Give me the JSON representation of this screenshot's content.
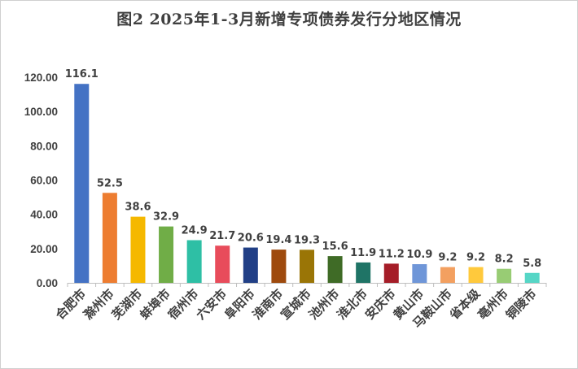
{
  "chart_data": {
    "type": "bar",
    "title": "图2  2025年1-3月新增专项债券发行分地区情况",
    "xlabel": "",
    "ylabel": "",
    "ylim": [
      0,
      120
    ],
    "yticks": [
      "0.00",
      "20.00",
      "40.00",
      "60.00",
      "80.00",
      "100.00",
      "120.00"
    ],
    "grid": false,
    "legend": "none",
    "categories": [
      "合肥市",
      "滁州市",
      "芜湖市",
      "蚌埠市",
      "宿州市",
      "六安市",
      "阜阳市",
      "淮南市",
      "宣城市",
      "池州市",
      "淮北市",
      "安庆市",
      "黄山市",
      "马鞍山市",
      "省本级",
      "亳州市",
      "铜陵市"
    ],
    "values": [
      116.1,
      52.5,
      38.6,
      32.9,
      24.9,
      21.7,
      20.6,
      19.4,
      19.3,
      15.6,
      11.9,
      11.2,
      10.9,
      9.2,
      9.2,
      8.2,
      5.8
    ],
    "colors": [
      "#4472c4",
      "#ed7d31",
      "#f5b800",
      "#70ad47",
      "#2ebfa5",
      "#e84c5b",
      "#213f86",
      "#9e4a0d",
      "#9a7506",
      "#3f6b26",
      "#1f7466",
      "#a51d28",
      "#6f96d8",
      "#f3a060",
      "#ffc93c",
      "#98cc74",
      "#56d6c6"
    ]
  }
}
